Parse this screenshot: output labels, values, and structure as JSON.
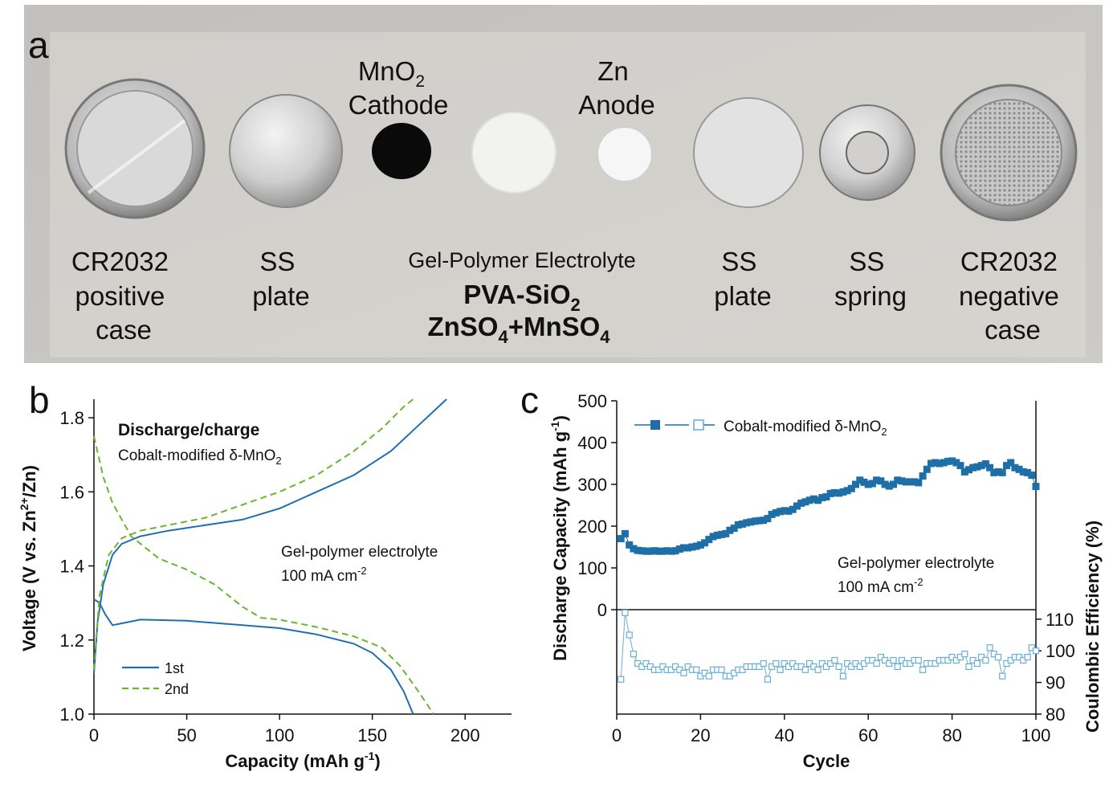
{
  "panel_a": {
    "letter": "a",
    "components": [
      {
        "lines": [
          "CR2032",
          "positive",
          "case"
        ]
      },
      {
        "lines": [
          "SS",
          "plate"
        ]
      },
      {
        "title_main": "MnO",
        "title_sub": "2",
        "title_line2": "Cathode"
      },
      {
        "title_line1": "Zn",
        "title_line2": "Anode"
      },
      {
        "lines": [
          "SS",
          "plate"
        ]
      },
      {
        "lines": [
          "SS",
          "spring"
        ]
      },
      {
        "lines": [
          "CR2032",
          "negative",
          "case"
        ]
      }
    ],
    "electrolyte": {
      "line1": "Gel-Polymer  Electrolyte",
      "line2_main": "PVA-SiO",
      "line2_sub": "2",
      "line3_a": "ZnSO",
      "line3_sub1": "4",
      "line3_b": "+MnSO",
      "line3_sub2": "4"
    },
    "colors": {
      "background": "#c9c6c1",
      "cathode": "#0a0a0a",
      "separator": "#f2f2f0",
      "metal": "#d8d8d8"
    }
  },
  "chart_data": [
    {
      "panel": "b",
      "type": "line",
      "title_bold": "Discharge/charge",
      "subtitle_main": "Cobalt-modified δ-MnO",
      "subtitle_sub": "2",
      "annotation_line1": "Gel-polymer electrolyte",
      "annotation_line2_main": "100 mA cm",
      "annotation_line2_sup": "-2",
      "xlabel_main": "Capacity (mAh g",
      "xlabel_sup": "-1",
      "xlabel_end": ")",
      "ylabel_a": "Voltage (V vs. Zn",
      "ylabel_sup": "2+",
      "ylabel_b": "/Zn)",
      "xlim": [
        0,
        225
      ],
      "ylim": [
        1.0,
        1.85
      ],
      "xticks": [
        0,
        50,
        100,
        150,
        200
      ],
      "xtick_labels": [
        "0",
        "50",
        "100",
        "150",
        "200"
      ],
      "yticks": [
        1.0,
        1.2,
        1.4,
        1.6,
        1.8
      ],
      "ytick_labels": [
        "1.0",
        "1.2",
        "1.4",
        "1.6",
        "1.8"
      ],
      "legend_position": "bottom-left",
      "series": [
        {
          "name": "1st",
          "color": "#1f6fb0",
          "style": "solid",
          "discharge": [
            [
              0,
              1.31
            ],
            [
              3,
              1.3
            ],
            [
              6,
              1.27
            ],
            [
              10,
              1.24
            ],
            [
              15,
              1.245
            ],
            [
              25,
              1.255
            ],
            [
              50,
              1.252
            ],
            [
              80,
              1.24
            ],
            [
              100,
              1.232
            ],
            [
              120,
              1.215
            ],
            [
              140,
              1.19
            ],
            [
              150,
              1.165
            ],
            [
              160,
              1.12
            ],
            [
              167,
              1.06
            ],
            [
              172,
              1.0
            ]
          ],
          "charge": [
            [
              0,
              1.11
            ],
            [
              2,
              1.25
            ],
            [
              5,
              1.35
            ],
            [
              10,
              1.43
            ],
            [
              15,
              1.46
            ],
            [
              25,
              1.48
            ],
            [
              40,
              1.495
            ],
            [
              60,
              1.51
            ],
            [
              80,
              1.525
            ],
            [
              100,
              1.555
            ],
            [
              120,
              1.6
            ],
            [
              140,
              1.645
            ],
            [
              160,
              1.71
            ],
            [
              175,
              1.78
            ],
            [
              190,
              1.85
            ]
          ]
        },
        {
          "name": "2nd",
          "color": "#6bb52f",
          "style": "dashed",
          "discharge": [
            [
              0,
              1.75
            ],
            [
              5,
              1.64
            ],
            [
              10,
              1.57
            ],
            [
              20,
              1.48
            ],
            [
              35,
              1.42
            ],
            [
              50,
              1.39
            ],
            [
              65,
              1.35
            ],
            [
              80,
              1.29
            ],
            [
              90,
              1.26
            ],
            [
              100,
              1.255
            ],
            [
              120,
              1.235
            ],
            [
              140,
              1.21
            ],
            [
              155,
              1.18
            ],
            [
              165,
              1.13
            ],
            [
              175,
              1.06
            ],
            [
              183,
              1.0
            ]
          ],
          "charge": [
            [
              0,
              1.12
            ],
            [
              3,
              1.32
            ],
            [
              8,
              1.43
            ],
            [
              15,
              1.475
            ],
            [
              25,
              1.495
            ],
            [
              40,
              1.51
            ],
            [
              60,
              1.53
            ],
            [
              80,
              1.565
            ],
            [
              100,
              1.6
            ],
            [
              120,
              1.645
            ],
            [
              140,
              1.71
            ],
            [
              155,
              1.77
            ],
            [
              167,
              1.83
            ],
            [
              172,
              1.85
            ]
          ]
        }
      ]
    },
    {
      "panel": "c",
      "type": "scatter",
      "legend_label_main": "Cobalt-modified δ-MnO",
      "legend_label_sub": "2",
      "annotation_line1": "Gel-polymer electrolyte",
      "annotation_line2_main": "100 mA cm",
      "annotation_line2_sup": "-2",
      "xlabel": "Cycle",
      "ylabel_left_main": "Discharge Capacity (mAh g",
      "ylabel_left_sup": "-1",
      "ylabel_left_end": ")",
      "ylabel_right": "Coulombic Efficiency (%)",
      "xlim": [
        0,
        100
      ],
      "xticks": [
        0,
        20,
        40,
        60,
        80,
        100
      ],
      "xtick_labels": [
        "0",
        "20",
        "40",
        "60",
        "80",
        "100"
      ],
      "ylim_capacity": [
        0,
        500
      ],
      "yticks_capacity": [
        0,
        100,
        200,
        300,
        400,
        500
      ],
      "ytick_labels_capacity": [
        "0",
        "100",
        "200",
        "300",
        "400",
        "500"
      ],
      "ylim_efficiency": [
        80,
        113
      ],
      "yticks_efficiency": [
        80,
        90,
        100,
        110
      ],
      "ytick_labels_efficiency": [
        "80",
        "90",
        "100",
        "110"
      ],
      "capacity_color": "#1e6ea8",
      "efficiency_color": "#6aaed6",
      "cycles": [
        1,
        2,
        3,
        4,
        5,
        6,
        7,
        8,
        9,
        10,
        11,
        12,
        13,
        14,
        15,
        16,
        17,
        18,
        19,
        20,
        21,
        22,
        23,
        24,
        25,
        26,
        27,
        28,
        29,
        30,
        31,
        32,
        33,
        34,
        35,
        36,
        37,
        38,
        39,
        40,
        41,
        42,
        43,
        44,
        45,
        46,
        47,
        48,
        49,
        50,
        51,
        52,
        53,
        54,
        55,
        56,
        57,
        58,
        59,
        60,
        61,
        62,
        63,
        64,
        65,
        66,
        67,
        68,
        69,
        70,
        71,
        72,
        73,
        74,
        75,
        76,
        77,
        78,
        79,
        80,
        81,
        82,
        83,
        84,
        85,
        86,
        87,
        88,
        89,
        90,
        91,
        92,
        93,
        94,
        95,
        96,
        97,
        98,
        99,
        100
      ],
      "capacity": [
        170,
        182,
        155,
        146,
        142,
        141,
        140,
        140,
        141,
        140,
        140,
        141,
        140,
        141,
        145,
        148,
        148,
        150,
        152,
        155,
        160,
        168,
        175,
        178,
        180,
        182,
        190,
        195,
        203,
        205,
        208,
        210,
        212,
        213,
        214,
        218,
        228,
        232,
        235,
        237,
        236,
        240,
        248,
        255,
        258,
        262,
        265,
        262,
        268,
        270,
        278,
        280,
        279,
        282,
        285,
        290,
        300,
        310,
        305,
        300,
        302,
        310,
        308,
        300,
        296,
        300,
        310,
        308,
        306,
        306,
        306,
        304,
        320,
        336,
        350,
        352,
        350,
        352,
        355,
        356,
        352,
        345,
        330,
        335,
        340,
        342,
        345,
        349,
        340,
        328,
        330,
        328,
        345,
        352,
        340,
        336,
        330,
        328,
        322,
        295
      ],
      "efficiency": [
        91,
        112,
        105,
        99,
        96,
        95,
        96,
        95,
        94,
        94,
        95,
        94,
        94,
        95,
        94,
        93,
        95,
        94,
        94,
        92,
        93,
        92,
        94,
        94,
        94,
        92,
        92,
        93,
        94,
        94,
        95,
        95,
        95,
        95,
        96,
        91,
        95,
        96,
        94,
        96,
        95,
        96,
        95,
        95,
        94,
        96,
        95,
        94,
        96,
        95,
        96,
        97,
        95,
        92,
        96,
        95,
        96,
        95,
        96,
        97,
        97,
        96,
        98,
        97,
        96,
        97,
        95,
        97,
        96,
        96,
        97,
        97,
        94,
        96,
        96,
        96,
        97,
        97,
        97,
        98,
        97,
        98,
        99,
        95,
        97,
        96,
        98,
        97,
        101,
        99,
        98,
        92,
        96,
        97,
        98,
        98,
        97,
        98,
        101,
        100
      ]
    }
  ]
}
